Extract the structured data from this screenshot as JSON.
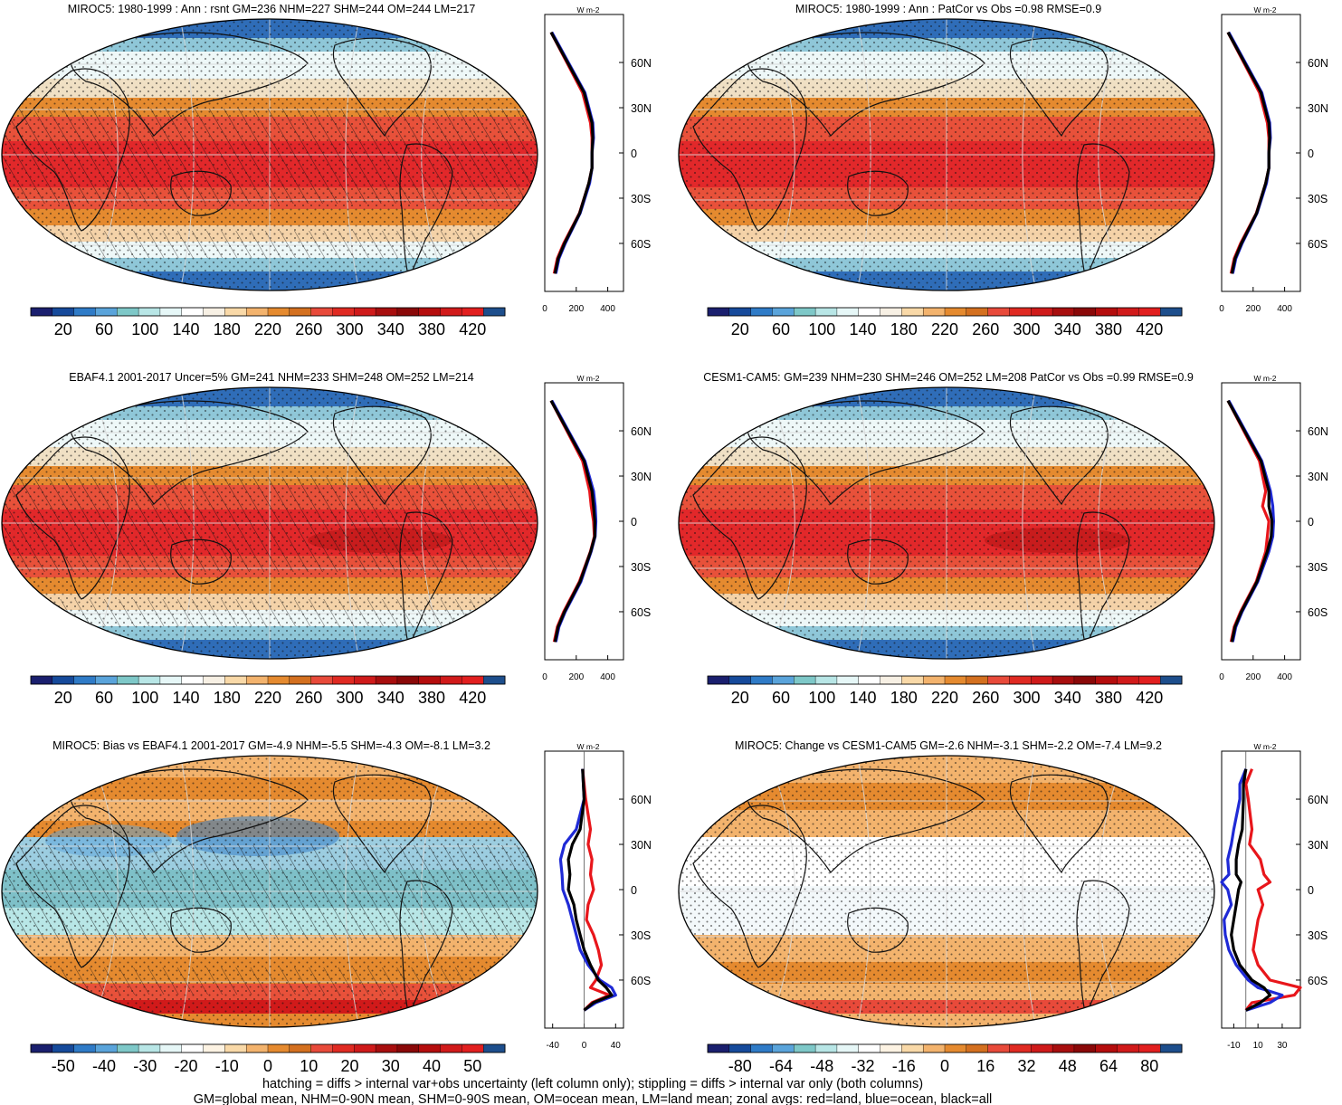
{
  "palettes": {
    "abs": [
      "#1a1f6e",
      "#164a9b",
      "#2f7bc7",
      "#5aa4db",
      "#7ec8c8",
      "#b8e6e6",
      "#e6f7f7",
      "#ffffff",
      "#f7f0e4",
      "#f9d9a8",
      "#f3b36d",
      "#e58a2f",
      "#d4701f",
      "#e84a3a",
      "#e02a22",
      "#cf1a1a",
      "#a80e0e",
      "#8a0808",
      "#b50d0d",
      "#d11a1a",
      "#e21f1f",
      "#1d4e8c"
    ],
    "bias": [
      "#1a1f6e",
      "#164a9b",
      "#2f7bc7",
      "#5aa4db",
      "#7ec8c8",
      "#b8e6e6",
      "#e6f7f7",
      "#ffffff",
      "#fdf3e3",
      "#f9d9a8",
      "#f3b36d",
      "#e58a2f",
      "#d4701f",
      "#e84a3a",
      "#e02a22",
      "#cf1a1a",
      "#a80e0e",
      "#8a0808",
      "#b50d0d",
      "#d11a1a",
      "#e21f1f",
      "#1d4e8c"
    ],
    "change": [
      "#1a1f6e",
      "#164a9b",
      "#2f7bc7",
      "#5aa4db",
      "#7ec8c8",
      "#b8e6e6",
      "#e6f7f7",
      "#ffffff",
      "#fdf3e3",
      "#f9d9a8",
      "#f3b36d",
      "#e58a2f",
      "#d4701f",
      "#e84a3a",
      "#e02a22",
      "#cf1a1a",
      "#a80e0e",
      "#8a0808",
      "#b50d0d",
      "#d11a1a",
      "#e21f1f",
      "#1d4e8c"
    ]
  },
  "line_colors": {
    "land": "#e8161b",
    "ocean": "#1f2ad6",
    "all": "#000000"
  },
  "panels": [
    {
      "id": "p1",
      "title": "MIROC5: 1980-1999 : Ann : rsnt GM=236 NHM=227 SHM=244 OM=244 LM=217",
      "colorbar_ticks": [
        "20",
        "60",
        "100",
        "140",
        "180",
        "220",
        "260",
        "300",
        "340",
        "380",
        "420"
      ],
      "palette": "abs",
      "hatching": true,
      "map_style": "abs",
      "zonal": {
        "unit": "W m-2",
        "xticks": [
          "0",
          "200",
          "400"
        ],
        "lat_labels": [
          "60N",
          "30N",
          "0",
          "30S",
          "60S"
        ]
      }
    },
    {
      "id": "p2",
      "title": "MIROC5: 1980-1999 : Ann : PatCor vs Obs =0.98 RMSE=0.9",
      "colorbar_ticks": [
        "20",
        "60",
        "100",
        "140",
        "180",
        "220",
        "260",
        "300",
        "340",
        "380",
        "420"
      ],
      "palette": "abs",
      "hatching": false,
      "map_style": "abs",
      "zonal": {
        "unit": "W m-2",
        "xticks": [
          "0",
          "200",
          "400"
        ],
        "lat_labels": [
          "60N",
          "30N",
          "0",
          "30S",
          "60S"
        ]
      }
    },
    {
      "id": "p3",
      "title": "EBAF4.1 2001-2017 Uncer=5% GM=241 NHM=233 SHM=248 OM=252 LM=214",
      "colorbar_ticks": [
        "20",
        "60",
        "100",
        "140",
        "180",
        "220",
        "260",
        "300",
        "340",
        "380",
        "420"
      ],
      "palette": "abs",
      "hatching": true,
      "map_style": "abs",
      "zonal": {
        "unit": "W m-2",
        "xticks": [
          "0",
          "200",
          "400"
        ],
        "lat_labels": [
          "60N",
          "30N",
          "0",
          "30S",
          "60S"
        ]
      }
    },
    {
      "id": "p4",
      "title": "CESM1-CAM5: GM=239 NHM=230 SHM=246 OM=252 LM=208 PatCor vs Obs =0.99 RMSE=0.9",
      "colorbar_ticks": [
        "20",
        "60",
        "100",
        "140",
        "180",
        "220",
        "260",
        "300",
        "340",
        "380",
        "420"
      ],
      "palette": "abs",
      "hatching": false,
      "map_style": "abs",
      "zonal": {
        "unit": "W m-2",
        "xticks": [
          "0",
          "200",
          "400"
        ],
        "lat_labels": [
          "60N",
          "30N",
          "0",
          "30S",
          "60S"
        ]
      }
    },
    {
      "id": "p5",
      "title": "MIROC5: Bias vs EBAF4.1 2001-2017 GM=-4.9 NHM=-5.5 SHM=-4.3 OM=-8.1 LM=3.2",
      "colorbar_ticks": [
        "-50",
        "-40",
        "-30",
        "-20",
        "-10",
        "0",
        "10",
        "20",
        "30",
        "40",
        "50"
      ],
      "palette": "bias",
      "hatching": true,
      "map_style": "bias",
      "zonal": {
        "unit": "W m-2",
        "xticks": [
          "-40",
          "0",
          "40"
        ],
        "lat_labels": [
          "60N",
          "30N",
          "0",
          "30S",
          "60S"
        ]
      }
    },
    {
      "id": "p6",
      "title": "MIROC5: Change vs CESM1-CAM5 GM=-2.6 NHM=-3.1 SHM=-2.2 OM=-7.4 LM=9.2",
      "colorbar_ticks": [
        "-80",
        "-64",
        "-48",
        "-32",
        "-16",
        "0",
        "16",
        "32",
        "48",
        "64",
        "80"
      ],
      "palette": "change",
      "hatching": false,
      "map_style": "change",
      "zonal": {
        "unit": "W m-2",
        "xticks": [
          "-10",
          "10",
          "30"
        ],
        "lat_labels": [
          "60N",
          "30N",
          "0",
          "30S",
          "60S"
        ]
      }
    }
  ],
  "chart_data": [
    {
      "type": "line",
      "title": "MIROC5: 1980-1999 : Ann : rsnt GM=236 NHM=227 SHM=244 OM=244 LM=217",
      "xlabel": "W m-2",
      "lat": [
        80,
        60,
        40,
        20,
        10,
        0,
        -10,
        -20,
        -40,
        -60,
        -70,
        -80
      ],
      "series": [
        {
          "name": "land",
          "values": [
            40,
            140,
            240,
            290,
            300,
            300,
            300,
            280,
            220,
            120,
            80,
            60
          ]
        },
        {
          "name": "ocean",
          "values": [
            45,
            150,
            255,
            305,
            310,
            300,
            300,
            285,
            225,
            130,
            90,
            70
          ]
        },
        {
          "name": "all",
          "values": [
            40,
            145,
            250,
            300,
            305,
            300,
            300,
            280,
            222,
            125,
            85,
            65
          ]
        }
      ]
    },
    {
      "type": "line",
      "title": "MIROC5: 1980-1999 : Ann : PatCor vs Obs =0.98 RMSE=0.9",
      "xlabel": "W m-2",
      "lat": [
        80,
        60,
        40,
        20,
        10,
        0,
        -10,
        -20,
        -40,
        -60,
        -70,
        -80
      ],
      "series": [
        {
          "name": "land",
          "values": [
            40,
            140,
            240,
            290,
            300,
            300,
            300,
            280,
            220,
            120,
            80,
            60
          ]
        },
        {
          "name": "ocean",
          "values": [
            45,
            150,
            255,
            305,
            310,
            300,
            300,
            285,
            225,
            130,
            90,
            70
          ]
        },
        {
          "name": "all",
          "values": [
            40,
            145,
            250,
            300,
            305,
            300,
            300,
            280,
            222,
            125,
            85,
            65
          ]
        }
      ]
    },
    {
      "type": "line",
      "title": "EBAF4.1 2001-2017 Uncer=5% GM=241 NHM=233 SHM=248 OM=252 LM=214",
      "xlabel": "W m-2",
      "lat": [
        80,
        60,
        40,
        20,
        10,
        0,
        -10,
        -20,
        -40,
        -60,
        -70,
        -80
      ],
      "series": [
        {
          "name": "land",
          "values": [
            40,
            140,
            240,
            285,
            295,
            310,
            315,
            290,
            220,
            120,
            80,
            60
          ]
        },
        {
          "name": "ocean",
          "values": [
            45,
            150,
            255,
            310,
            320,
            325,
            320,
            295,
            230,
            130,
            90,
            70
          ]
        },
        {
          "name": "all",
          "values": [
            40,
            145,
            250,
            300,
            310,
            318,
            318,
            292,
            225,
            125,
            85,
            65
          ]
        }
      ]
    },
    {
      "type": "line",
      "title": "CESM1-CAM5: GM=239 NHM=230 SHM=246 OM=252 LM=208 PatCor vs Obs =0.99 RMSE=0.9",
      "xlabel": "W m-2",
      "lat": [
        80,
        60,
        40,
        20,
        10,
        0,
        -10,
        -20,
        -40,
        -60,
        -70,
        -80
      ],
      "series": [
        {
          "name": "land",
          "values": [
            40,
            140,
            240,
            280,
            260,
            300,
            290,
            280,
            220,
            120,
            80,
            60
          ]
        },
        {
          "name": "ocean",
          "values": [
            45,
            150,
            255,
            310,
            325,
            330,
            325,
            300,
            230,
            130,
            90,
            70
          ]
        },
        {
          "name": "all",
          "values": [
            40,
            145,
            250,
            300,
            300,
            320,
            315,
            290,
            225,
            125,
            85,
            65
          ]
        }
      ]
    },
    {
      "type": "line",
      "title": "MIROC5: Bias vs EBAF4.1 2001-2017 GM=-4.9 NHM=-5.5 SHM=-4.3 OM=-8.1 LM=3.2",
      "xlabel": "W m-2",
      "xlim": [
        -50,
        50
      ],
      "lat": [
        80,
        60,
        40,
        30,
        20,
        10,
        0,
        -10,
        -20,
        -30,
        -40,
        -50,
        -60,
        -65,
        -70,
        -75,
        -80
      ],
      "series": [
        {
          "name": "land",
          "values": [
            -2,
            2,
            8,
            5,
            10,
            8,
            12,
            5,
            3,
            12,
            18,
            22,
            15,
            8,
            32,
            10,
            0
          ]
        },
        {
          "name": "ocean",
          "values": [
            -2,
            0,
            -10,
            -25,
            -30,
            -28,
            -27,
            -20,
            -15,
            -10,
            -5,
            5,
            20,
            35,
            40,
            15,
            0
          ]
        },
        {
          "name": "all",
          "values": [
            -2,
            0,
            -5,
            -15,
            -20,
            -18,
            -20,
            -13,
            -10,
            -5,
            0,
            8,
            18,
            28,
            35,
            12,
            0
          ]
        }
      ]
    },
    {
      "type": "line",
      "title": "MIROC5: Change vs CESM1-CAM5 GM=-2.6 NHM=-3.1 SHM=-2.2 OM=-7.4 LM=9.2",
      "xlabel": "W m-2",
      "xlim": [
        -20,
        45
      ],
      "lat": [
        80,
        70,
        60,
        40,
        30,
        20,
        10,
        5,
        0,
        -10,
        -20,
        -30,
        -40,
        -50,
        -60,
        -65,
        -70,
        -75,
        -80
      ],
      "series": [
        {
          "name": "land",
          "values": [
            5,
            0,
            2,
            5,
            3,
            12,
            15,
            20,
            10,
            14,
            10,
            8,
            6,
            10,
            20,
            45,
            40,
            5,
            0
          ]
        },
        {
          "name": "ocean",
          "values": [
            0,
            -5,
            -5,
            -10,
            -12,
            -15,
            -14,
            -20,
            -15,
            -12,
            -18,
            -17,
            -14,
            -8,
            2,
            10,
            30,
            20,
            0
          ]
        },
        {
          "name": "all",
          "values": [
            0,
            -2,
            -2,
            -3,
            -6,
            -8,
            -8,
            -4,
            -6,
            -8,
            -10,
            -12,
            -10,
            -5,
            5,
            15,
            20,
            12,
            0
          ]
        }
      ]
    }
  ],
  "footer": {
    "line1": "hatching = diffs > internal var+obs uncertainty (left column only); stippling = diffs > internal var only (both columns)",
    "line2": "GM=global mean, NHM=0-90N mean, SHM=0-90S mean, OM=ocean mean, LM=land mean; zonal avgs: red=land, blue=ocean, black=all"
  }
}
